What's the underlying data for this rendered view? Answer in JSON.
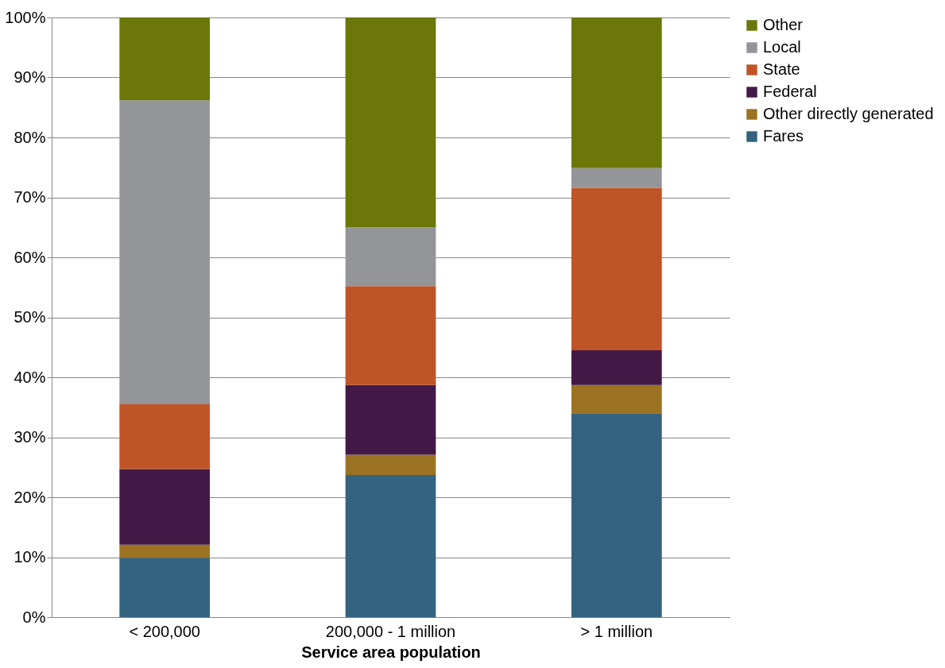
{
  "chart_data": {
    "type": "bar",
    "stacked": true,
    "xlabel": "Service area population",
    "categories": [
      "< 200,000",
      "200,000 - 1 million",
      "> 1 million"
    ],
    "series": [
      {
        "name": "Fares",
        "color": "#34637f",
        "values": [
          9.9,
          23.7,
          34.0
        ]
      },
      {
        "name": "Other directly generated",
        "color": "#9b7322",
        "values": [
          2.2,
          3.4,
          4.7
        ]
      },
      {
        "name": "Federal",
        "color": "#431a47",
        "values": [
          12.6,
          11.6,
          5.8
        ]
      },
      {
        "name": "State",
        "color": "#bf5426",
        "values": [
          10.8,
          16.5,
          27.1
        ]
      },
      {
        "name": "Local",
        "color": "#939598",
        "values": [
          50.7,
          9.8,
          3.3
        ]
      },
      {
        "name": "Other",
        "color": "#6b7708",
        "values": [
          13.8,
          35.0,
          25.1
        ]
      }
    ],
    "ylim": [
      0,
      100
    ],
    "yticks": [
      {
        "value": 0,
        "label": "0%"
      },
      {
        "value": 10,
        "label": "10%"
      },
      {
        "value": 20,
        "label": "20%"
      },
      {
        "value": 30,
        "label": "30%"
      },
      {
        "value": 40,
        "label": "40%"
      },
      {
        "value": 50,
        "label": "50%"
      },
      {
        "value": 60,
        "label": "60%"
      },
      {
        "value": 70,
        "label": "70%"
      },
      {
        "value": 80,
        "label": "80%"
      },
      {
        "value": 90,
        "label": "90%"
      },
      {
        "value": 100,
        "label": "100%"
      }
    ],
    "grid": "y",
    "legend": "right"
  }
}
